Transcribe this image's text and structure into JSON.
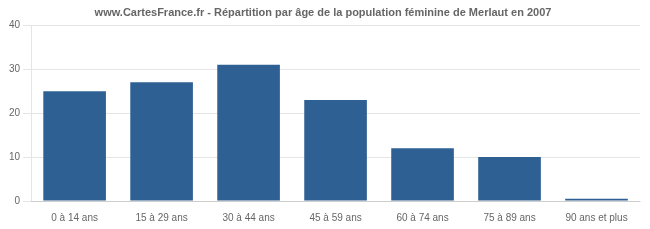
{
  "chart_data": {
    "type": "bar",
    "title": "www.CartesFrance.fr - Répartition par âge de la population féminine de Merlaut en 2007",
    "categories": [
      "0 à 14 ans",
      "15 à 29 ans",
      "30 à 44 ans",
      "45 à 59 ans",
      "60 à 74 ans",
      "75 à 89 ans",
      "90 ans et plus"
    ],
    "values": [
      25,
      27,
      31,
      23,
      12,
      10,
      0.5
    ],
    "color": "#2e6094",
    "ylim": [
      0,
      40
    ],
    "yticks": [
      0,
      10,
      20,
      30,
      40
    ],
    "grid": true
  }
}
